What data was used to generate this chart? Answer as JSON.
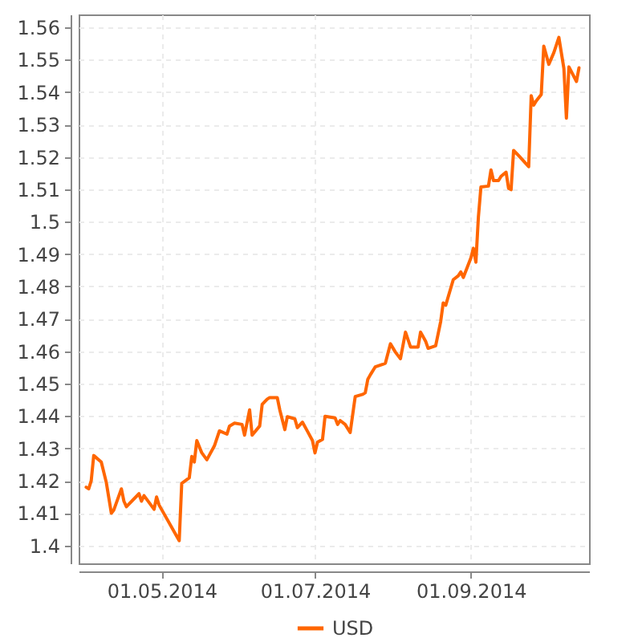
{
  "chart_data": {
    "type": "line",
    "x": [
      "2014-04-01",
      "2014-04-02",
      "2014-04-03",
      "2014-04-04",
      "2014-04-07",
      "2014-04-09",
      "2014-04-11",
      "2014-04-12",
      "2014-04-15",
      "2014-04-16",
      "2014-04-17",
      "2014-04-22",
      "2014-04-23",
      "2014-04-24",
      "2014-04-28",
      "2014-04-29",
      "2014-04-30",
      "2014-05-08",
      "2014-05-09",
      "2014-05-12",
      "2014-05-13",
      "2014-05-14",
      "2014-05-15",
      "2014-05-17",
      "2014-05-19",
      "2014-05-22",
      "2014-05-24",
      "2014-05-27",
      "2014-05-28",
      "2014-05-30",
      "2014-06-02",
      "2014-06-03",
      "2014-06-05",
      "2014-06-06",
      "2014-06-09",
      "2014-06-10",
      "2014-06-12",
      "2014-06-13",
      "2014-06-16",
      "2014-06-17",
      "2014-06-19",
      "2014-06-20",
      "2014-06-23",
      "2014-06-24",
      "2014-06-26",
      "2014-06-28",
      "2014-06-30",
      "2014-07-01",
      "2014-07-02",
      "2014-07-04",
      "2014-07-05",
      "2014-07-09",
      "2014-07-10",
      "2014-07-11",
      "2014-07-13",
      "2014-07-15",
      "2014-07-17",
      "2014-07-20",
      "2014-07-21",
      "2014-07-22",
      "2014-07-23",
      "2014-07-25",
      "2014-07-28",
      "2014-07-29",
      "2014-07-31",
      "2014-08-02",
      "2014-08-04",
      "2014-08-06",
      "2014-08-08",
      "2014-08-11",
      "2014-08-12",
      "2014-08-14",
      "2014-08-15",
      "2014-08-18",
      "2014-08-20",
      "2014-08-21",
      "2014-08-22",
      "2014-08-25",
      "2014-08-27",
      "2014-08-28",
      "2014-08-29",
      "2014-09-01",
      "2014-09-02",
      "2014-09-03",
      "2014-09-04",
      "2014-09-05",
      "2014-09-08",
      "2014-09-09",
      "2014-09-10",
      "2014-09-12",
      "2014-09-13",
      "2014-09-15",
      "2014-09-16",
      "2014-09-17",
      "2014-09-18",
      "2014-09-20",
      "2014-09-24",
      "2014-09-25",
      "2014-09-26",
      "2014-09-27",
      "2014-09-29",
      "2014-09-30",
      "2014-10-02",
      "2014-10-04",
      "2014-10-06",
      "2014-10-08",
      "2014-10-09",
      "2014-10-10",
      "2014-10-13",
      "2014-10-14"
    ],
    "series": [
      {
        "name": "USD",
        "color": "#ff6600",
        "values": [
          1.418,
          1.4175,
          1.42,
          1.4278,
          1.4258,
          1.4195,
          1.41,
          1.411,
          1.4175,
          1.4137,
          1.412,
          1.416,
          1.4137,
          1.4154,
          1.4112,
          1.415,
          1.4125,
          1.4015,
          1.4192,
          1.4209,
          1.4275,
          1.4258,
          1.4324,
          1.4286,
          1.4265,
          1.4308,
          1.4354,
          1.4344,
          1.4369,
          1.4378,
          1.4374,
          1.4341,
          1.4419,
          1.4341,
          1.4369,
          1.4436,
          1.4452,
          1.4457,
          1.4457,
          1.4419,
          1.4358,
          1.4398,
          1.4391,
          1.4364,
          1.4381,
          1.4353,
          1.4324,
          1.4286,
          1.4319,
          1.4328,
          1.4399,
          1.4394,
          1.4374,
          1.4386,
          1.4374,
          1.4349,
          1.446,
          1.4467,
          1.4472,
          1.4513,
          1.4527,
          1.4552,
          1.456,
          1.4563,
          1.4623,
          1.4597,
          1.4577,
          1.4659,
          1.4613,
          1.4613,
          1.4659,
          1.4631,
          1.4609,
          1.4617,
          1.4692,
          1.4749,
          1.4742,
          1.4821,
          1.4833,
          1.4845,
          1.4828,
          1.4888,
          1.4918,
          1.4875,
          1.5015,
          1.5107,
          1.511,
          1.516,
          1.5127,
          1.5127,
          1.514,
          1.5153,
          1.5103,
          1.5099,
          1.522,
          1.5204,
          1.517,
          1.5389,
          1.536,
          1.5373,
          1.5393,
          1.5542,
          1.5486,
          1.5522,
          1.5569,
          1.5473,
          1.532,
          1.5478,
          1.5433,
          1.5475
        ]
      }
    ],
    "xlim": [
      "2014-03-29",
      "2014-10-18"
    ],
    "xticks": [
      {
        "value": "2014-05-01",
        "label": "01.05.2014"
      },
      {
        "value": "2014-07-01",
        "label": "01.07.2014"
      },
      {
        "value": "2014-09-01",
        "label": "01.09.2014"
      }
    ],
    "ylim": [
      1.3945,
      1.564
    ],
    "yticks": [
      1.4,
      1.41,
      1.42,
      1.43,
      1.44,
      1.45,
      1.46,
      1.47,
      1.48,
      1.49,
      1.5,
      1.51,
      1.52,
      1.53,
      1.54,
      1.55,
      1.56
    ],
    "grid": true,
    "legend": "bottom"
  }
}
